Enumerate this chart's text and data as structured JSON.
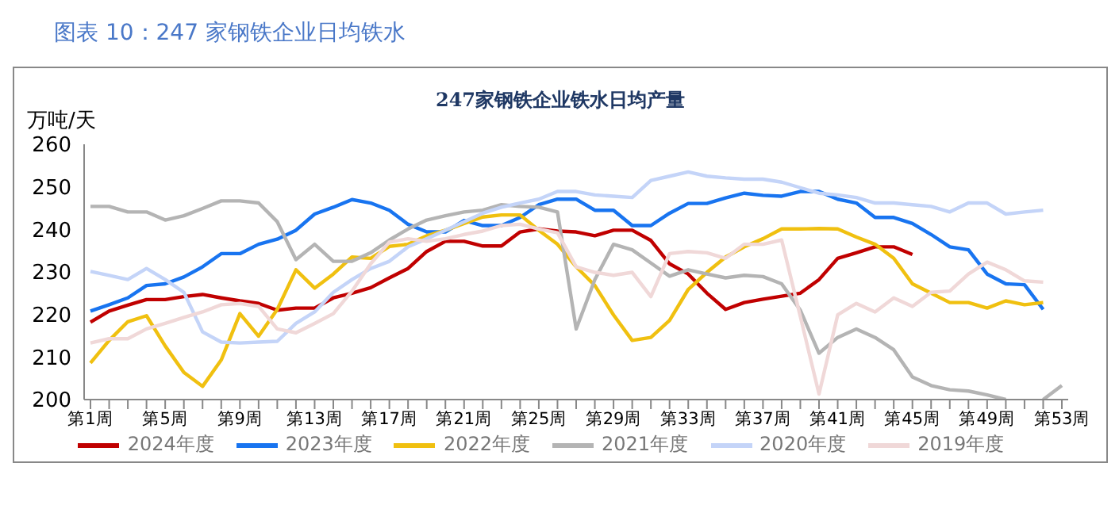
{
  "chart_data": {
    "type": "line",
    "title": "247家钢铁企业铁水日均产量",
    "subtitle": "图表 10：247 家钢铁企业日均铁水",
    "ylabel": "万吨/天",
    "categories": [
      "第1周",
      null,
      null,
      null,
      "第5周",
      null,
      null,
      null,
      "第9周",
      null,
      null,
      null,
      "第13周",
      null,
      null,
      null,
      "第17周",
      null,
      null,
      null,
      "第21周",
      null,
      null,
      null,
      "第25周",
      null,
      null,
      null,
      "第29周",
      null,
      null,
      null,
      "第33周",
      null,
      null,
      null,
      "第37周",
      null,
      null,
      null,
      "第41周",
      null,
      null,
      null,
      "第45周",
      null,
      null,
      null,
      "第49周",
      null,
      null,
      null,
      "第53周"
    ],
    "series": [
      {
        "name": "2024年度",
        "color": "#c00000",
        "values": [
          218.2,
          220.8,
          222.2,
          223.5,
          223.5,
          224.2,
          224.7,
          223.9,
          223.2,
          222.6,
          221,
          221.5,
          221.5,
          223.9,
          225,
          226.3,
          228.6,
          230.8,
          234.8,
          237.2,
          237.2,
          236.1,
          236.1,
          239.4,
          240.1,
          239.6,
          239.4,
          238.5,
          239.8,
          239.8,
          237.4,
          231.9,
          229.5,
          225,
          221.2,
          222.8,
          223.6,
          224.3,
          225,
          228.2,
          233.2,
          234.5,
          235.9,
          235.9,
          234.1,
          null,
          null,
          null,
          null,
          null,
          null,
          null,
          null
        ]
      },
      {
        "name": "2023年度",
        "color": "#1874f0",
        "values": [
          220.8,
          222.3,
          223.9,
          226.8,
          227.2,
          228.8,
          231.2,
          234.3,
          234.3,
          236.5,
          237.7,
          239.8,
          243.6,
          245.2,
          247,
          246.2,
          244.5,
          241.2,
          239.4,
          239.4,
          242.1,
          240.9,
          240.9,
          242.8,
          245.8,
          247.1,
          247.1,
          244.5,
          244.5,
          240.9,
          240.9,
          243.8,
          246.1,
          246.1,
          247.4,
          248.5,
          248,
          247.8,
          248.9,
          248.9,
          247.1,
          246.2,
          242.8,
          242.8,
          241.4,
          238.8,
          235.9,
          235.2,
          229.5,
          227.2,
          227,
          221.2,
          null
        ]
      },
      {
        "name": "2022年度",
        "color": "#f0c010",
        "values": [
          208.6,
          213.9,
          218.3,
          219.7,
          212.6,
          206.4,
          203.1,
          209.3,
          220.2,
          214.9,
          221.2,
          230.5,
          226.2,
          229.5,
          233.5,
          233.2,
          236,
          236.5,
          238.5,
          239.8,
          241.4,
          242.9,
          243.4,
          243.4,
          239.8,
          236.5,
          231.2,
          226.8,
          219.9,
          213.9,
          214.6,
          218.6,
          225.9,
          229.9,
          233.5,
          235.9,
          237.8,
          240.1,
          240.1,
          240.2,
          240.1,
          238.2,
          236.5,
          233.2,
          227.2,
          225,
          222.8,
          222.8,
          221.5,
          223.2,
          222.3,
          222.8,
          null
        ]
      },
      {
        "name": "2021年度",
        "color": "#b4b4b4",
        "values": [
          245.4,
          245.4,
          244.1,
          244.1,
          242.2,
          243.2,
          244.9,
          246.7,
          246.7,
          246.2,
          241.8,
          232.9,
          236.5,
          232.5,
          232.5,
          234.5,
          237.5,
          240.1,
          242.2,
          243.2,
          244.1,
          244.5,
          245.8,
          245.4,
          245.2,
          244.1,
          216.6,
          228.2,
          236.5,
          235.2,
          232.1,
          229,
          230.5,
          229.5,
          228.6,
          229.2,
          228.9,
          227.2,
          221,
          210.9,
          214.6,
          216.6,
          214.6,
          211.7,
          205.3,
          203.3,
          202.3,
          202,
          201.1,
          200,
          null,
          200,
          203.3
        ]
      },
      {
        "name": "2020年度",
        "color": "#c4d4f8",
        "values": [
          230.1,
          229.2,
          228.2,
          230.8,
          228.2,
          225.2,
          215.9,
          213.5,
          213.3,
          213.5,
          213.7,
          217.9,
          220.6,
          225.2,
          228.2,
          230.8,
          232.5,
          235.9,
          237.8,
          239.8,
          241.8,
          243.8,
          245.2,
          246.2,
          247.1,
          248.9,
          248.9,
          248.1,
          247.8,
          247.5,
          251.5,
          252.5,
          253.5,
          252.5,
          252.1,
          251.8,
          251.8,
          251.1,
          249.8,
          248.5,
          248.1,
          247.5,
          246.2,
          246.2,
          245.8,
          245.4,
          244.1,
          246.2,
          246.2,
          243.6,
          244.1,
          244.5,
          null
        ]
      },
      {
        "name": "2019年度",
        "color": "#f0d8d8",
        "values": [
          213.3,
          214.3,
          214.3,
          216.6,
          217.9,
          219.3,
          220.6,
          222.3,
          222.6,
          221.9,
          216.6,
          215.7,
          217.9,
          220.2,
          225.5,
          231.9,
          237,
          237.8,
          237.2,
          237.8,
          238.8,
          239.6,
          240.9,
          241.2,
          240.1,
          239.2,
          231.2,
          229.9,
          229.2,
          229.9,
          224.2,
          234.3,
          234.8,
          234.5,
          233.2,
          236.5,
          236.5,
          237.5,
          219.5,
          201.3,
          219.9,
          222.6,
          220.6,
          223.9,
          221.9,
          225.2,
          225.5,
          229.5,
          232.3,
          230.5,
          227.9,
          227.6,
          null
        ]
      }
    ],
    "ylim": [
      200,
      260
    ],
    "yticks": [
      200,
      210,
      220,
      230,
      240,
      250,
      260
    ],
    "grid": false,
    "legend": "bottom",
    "marker": "none",
    "line_style": "solid"
  }
}
